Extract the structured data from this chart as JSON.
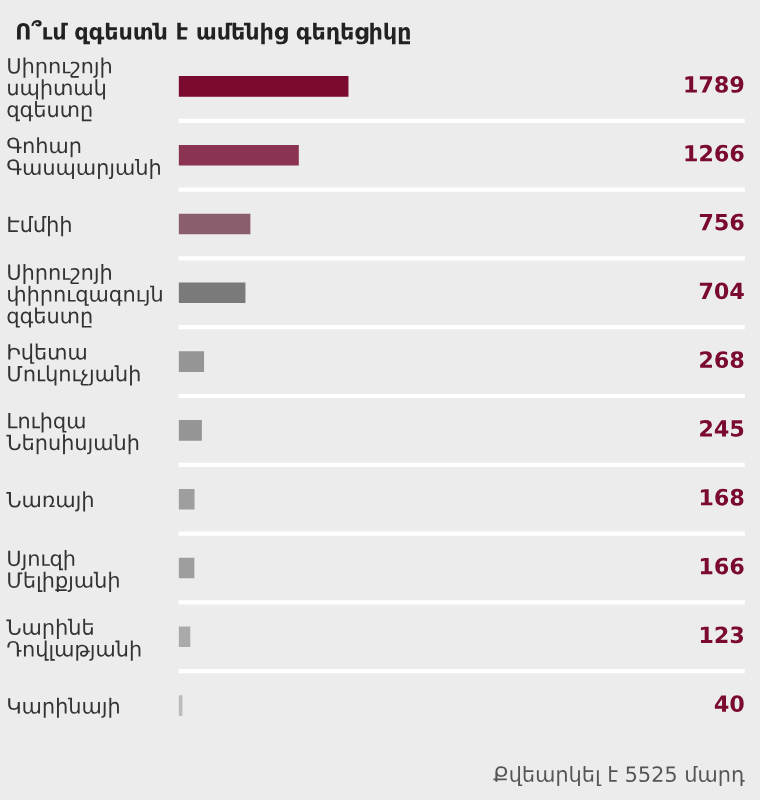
{
  "chart_data": {
    "type": "bar",
    "orientation": "horizontal",
    "title": "Ո՞ւմ զգեստն է ամենից գեղեցիկը",
    "categories": [
      "Սիրուշոյի\nսպիտակ\nզգեստը",
      "Գոհար\nԳասպարյանի",
      "Էմմիի",
      "Սիրուշոյի\nփիրուզագույն\nզգեստը",
      "Իվետա\nՄուկուչյանի",
      "Լուիզա\nՆերսիսյանի",
      "Նառայի",
      "Սյուզի\nՄելիքյանի",
      "Նարինե\nԴովլաթյանի",
      "Կարինայի"
    ],
    "values": [
      1789,
      1266,
      756,
      704,
      268,
      245,
      168,
      166,
      123,
      40
    ],
    "colors": [
      "#7a0a2e",
      "#8a3352",
      "#8a5e6c",
      "#7a7a7a",
      "#959595",
      "#959595",
      "#9e9e9e",
      "#9e9e9e",
      "#aaaaaa",
      "#bbbbbb"
    ],
    "data_labels": true,
    "grid": "y",
    "annotations": [
      "Քվեարկել է 5525 մարդ"
    ]
  }
}
